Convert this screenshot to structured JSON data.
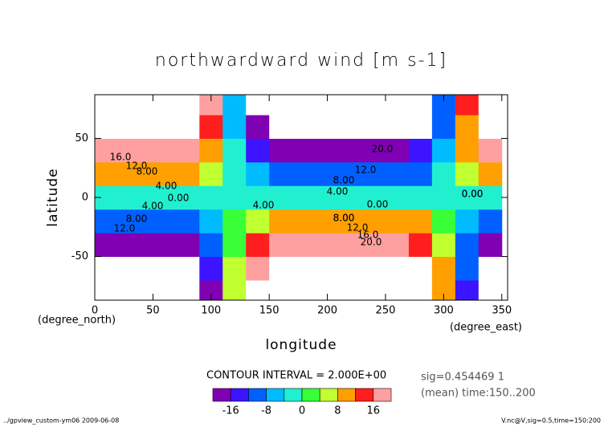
{
  "chart_data": {
    "type": "contour",
    "title": "northwardward wind [m s-1]",
    "x_label": "longitude",
    "y_label": "latitude",
    "x_unit": "(degree_east)",
    "y_unit": "(degree_north)",
    "x": [
      0,
      20,
      40,
      60,
      80,
      100,
      120,
      140,
      160,
      180,
      200,
      220,
      240,
      260,
      280,
      300,
      320,
      340
    ],
    "y": [
      -80,
      -60,
      -40,
      -20,
      0,
      20,
      40,
      60,
      80
    ],
    "z": [
      [
        -28.5,
        -29.1,
        -29.1,
        -28.8,
        -27.0,
        -17.9,
        5.8,
        22.2,
        27.4,
        28.8,
        29.1,
        29.1,
        28.9,
        27.9,
        24.2,
        11.2,
        -13.0,
        -25.8
      ],
      [
        -25.1,
        -25.6,
        -25.6,
        -25.4,
        -23.8,
        -15.8,
        5.1,
        19.6,
        24.2,
        25.4,
        25.6,
        25.7,
        25.4,
        24.6,
        21.3,
        9.9,
        -11.4,
        -22.7
      ],
      [
        -18.6,
        -19.0,
        -19.0,
        -18.8,
        -17.6,
        -11.7,
        3.8,
        14.5,
        17.9,
        18.8,
        19.0,
        19.0,
        18.9,
        18.3,
        15.8,
        7.3,
        -8.5,
        -16.9
      ],
      [
        -9.9,
        -10.1,
        -10.2,
        -10.0,
        -9.4,
        -6.3,
        2.0,
        7.8,
        9.6,
        10.0,
        10.2,
        10.2,
        10.1,
        9.8,
        8.5,
        3.9,
        -4.5,
        -9.0
      ],
      [
        0,
        0,
        0,
        0,
        0,
        0,
        0,
        0,
        0,
        0,
        0,
        0,
        0,
        0,
        0,
        0,
        0,
        0
      ],
      [
        9.9,
        10.1,
        10.2,
        10.0,
        9.4,
        6.3,
        -2.0,
        -7.8,
        -9.6,
        -10.0,
        -10.2,
        -10.2,
        -10.1,
        -9.8,
        -8.5,
        -3.9,
        4.5,
        9.0
      ],
      [
        18.6,
        19.0,
        19.0,
        18.8,
        17.6,
        11.7,
        -3.8,
        -14.5,
        -17.9,
        -18.8,
        -19.0,
        -19.0,
        -18.9,
        -18.3,
        -15.8,
        -7.3,
        8.5,
        16.9
      ],
      [
        25.1,
        25.6,
        25.6,
        25.4,
        23.8,
        15.8,
        -5.1,
        -19.6,
        -24.2,
        -25.4,
        -25.6,
        -25.7,
        -25.4,
        -24.6,
        -21.3,
        -9.9,
        11.4,
        22.7
      ],
      [
        28.5,
        29.1,
        29.1,
        28.8,
        27.0,
        17.9,
        -5.8,
        -22.2,
        -27.4,
        -28.8,
        -29.1,
        -29.1,
        -28.9,
        -27.9,
        -24.2,
        -11.2,
        13.0,
        25.8
      ]
    ],
    "xlim": [
      0,
      355
    ],
    "ylim": [
      -87,
      87
    ],
    "xticks": [
      0,
      50,
      100,
      150,
      200,
      250,
      300,
      350
    ],
    "yticks": [
      -50,
      0,
      50
    ],
    "levels": [
      -20,
      -16,
      -12,
      -8,
      -4,
      0,
      4,
      8,
      12,
      16,
      20
    ],
    "colors": [
      "#8000b4",
      "#3c14ff",
      "#0060ff",
      "#00bcff",
      "#20f0d0",
      "#38ff38",
      "#c0ff30",
      "#ffa000",
      "#ff1e1e",
      "#ffa0a0"
    ],
    "colorbar_ticks": [
      -16,
      -8,
      0,
      8,
      16
    ],
    "contour_interval_text": "CONTOUR INTERVAL = 2.000E+00",
    "contour_labels": [
      "16.0",
      "12.0",
      "8.00",
      "4.00",
      "0.00",
      "4.00",
      "8.00",
      "12.0",
      "4.00",
      "0.00",
      "8.00",
      "12.0",
      "20.0",
      "8.00",
      "4.00",
      "0.00",
      "8.00",
      "12.0",
      "16.0",
      "20.0",
      "0.00"
    ],
    "info": [
      "sig=0.454469 1",
      "(mean) time:150..200"
    ],
    "footer_left": "../gpview_custom-ym06  2009-06-08",
    "footer_right": "V.nc@V,sig=0.5,time=150:200"
  }
}
